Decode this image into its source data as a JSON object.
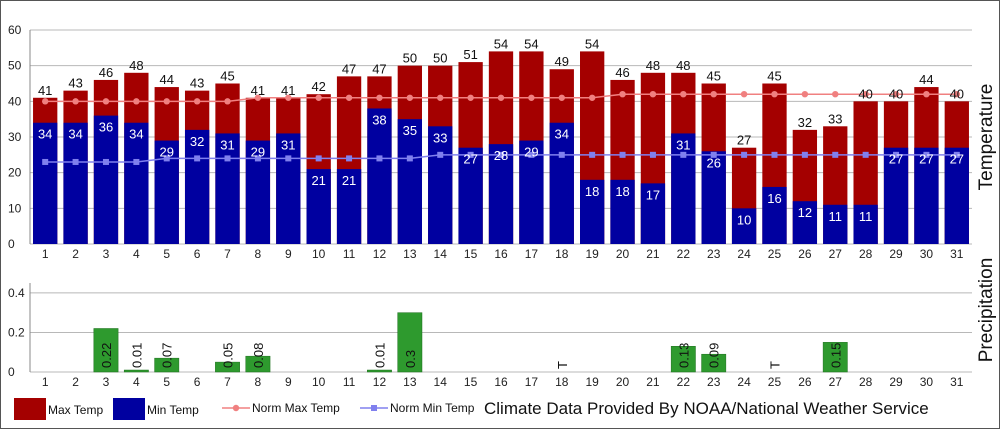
{
  "chart_data": [
    {
      "type": "bar",
      "categories": [
        "1",
        "2",
        "3",
        "4",
        "5",
        "6",
        "7",
        "8",
        "9",
        "10",
        "11",
        "12",
        "13",
        "14",
        "15",
        "16",
        "17",
        "18",
        "19",
        "20",
        "21",
        "22",
        "23",
        "24",
        "25",
        "26",
        "27",
        "28",
        "29",
        "30",
        "31"
      ],
      "series": [
        {
          "name": "Max Temp",
          "values": [
            41,
            43,
            46,
            48,
            44,
            43,
            45,
            41,
            41,
            42,
            47,
            47,
            50,
            50,
            51,
            54,
            54,
            49,
            54,
            46,
            48,
            48,
            45,
            27,
            45,
            32,
            33,
            40,
            40,
            44,
            40
          ]
        },
        {
          "name": "Min Temp",
          "values": [
            34,
            34,
            36,
            34,
            29,
            32,
            31,
            29,
            31,
            21,
            21,
            38,
            35,
            33,
            27,
            28,
            29,
            34,
            18,
            18,
            17,
            31,
            26,
            10,
            16,
            12,
            11,
            11,
            27,
            27,
            27
          ]
        },
        {
          "name": "Norm Max Temp",
          "type": "line",
          "values": [
            40,
            40,
            40,
            40,
            40,
            40,
            40,
            41,
            41,
            41,
            41,
            41,
            41,
            41,
            41,
            41,
            41,
            41,
            41,
            42,
            42,
            42,
            42,
            42,
            42,
            42,
            42,
            42,
            42,
            42,
            42
          ]
        },
        {
          "name": "Norm Min Temp",
          "type": "line",
          "values": [
            23,
            23,
            23,
            23,
            24,
            24,
            24,
            24,
            24,
            24,
            24,
            24,
            24,
            25,
            25,
            25,
            25,
            25,
            25,
            25,
            25,
            25,
            25,
            25,
            25,
            25,
            25,
            25,
            25,
            25,
            25
          ]
        }
      ],
      "ylabel": "Temperature",
      "ylim": [
        0,
        60
      ],
      "yticks": [
        "0",
        "10",
        "20",
        "30",
        "40",
        "50",
        "60"
      ],
      "grid": true,
      "colors": {
        "Max Temp": "#a40000",
        "Min Temp": "#0000a0",
        "Norm Max Temp": "#f08080",
        "Norm Min Temp": "#8080ee"
      }
    },
    {
      "type": "bar",
      "categories": [
        "1",
        "2",
        "3",
        "4",
        "5",
        "6",
        "7",
        "8",
        "9",
        "10",
        "11",
        "12",
        "13",
        "14",
        "15",
        "16",
        "17",
        "18",
        "19",
        "20",
        "21",
        "22",
        "23",
        "24",
        "25",
        "26",
        "27",
        "28",
        "29",
        "30",
        "31"
      ],
      "values": [
        0,
        0,
        0.22,
        0.01,
        0.07,
        0,
        0.05,
        0.08,
        0,
        0,
        0,
        0.01,
        0.3,
        0,
        0,
        0,
        0,
        0,
        0,
        0,
        0,
        0.13,
        0.09,
        0,
        0,
        0,
        0.15,
        0,
        0,
        0,
        0
      ],
      "value_labels": [
        "",
        "",
        "0.22",
        "0.01",
        "0.07",
        "",
        "0.05",
        "0.08",
        "",
        "",
        "",
        "0.01",
        "0.3",
        "",
        "",
        "",
        "",
        "T",
        "",
        "",
        "",
        "0.13",
        "0.09",
        "",
        "T",
        "",
        "0.15",
        "",
        "",
        "",
        ""
      ],
      "ylabel": "Precipitation",
      "ylim": [
        0,
        0.45
      ],
      "yticks": [
        "0",
        "0.2",
        "0.4"
      ],
      "grid": true,
      "color": "#2e9a2e"
    }
  ],
  "legend": [
    {
      "label": "Max Temp",
      "kind": "box",
      "color": "#a40000"
    },
    {
      "label": "Min Temp",
      "kind": "box",
      "color": "#0000a0"
    },
    {
      "label": "Norm Max Temp",
      "kind": "line",
      "color": "#f08080"
    },
    {
      "label": "Norm Min Temp",
      "kind": "line",
      "color": "#8080ee"
    }
  ],
  "credit": "Climate Data Provided By NOAA/National Weather Service"
}
